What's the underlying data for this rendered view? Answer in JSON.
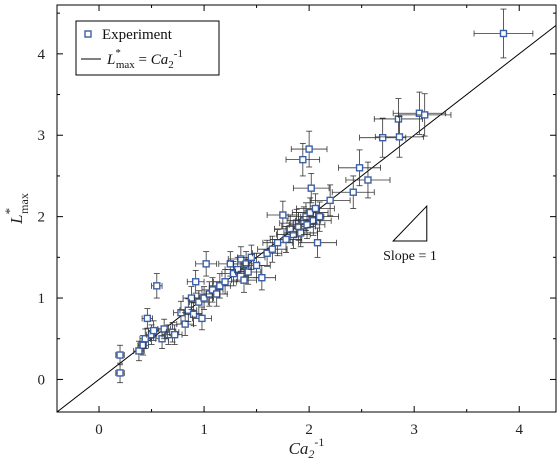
{
  "chart_data": {
    "type": "scatter",
    "title": "",
    "xlabel": {
      "base": "Ca",
      "sub": "2",
      "sup": "-1"
    },
    "ylabel": {
      "base": "L",
      "sup": "*",
      "sub": "max"
    },
    "xlim": [
      -0.4,
      4.35
    ],
    "ylim": [
      -0.4,
      4.6
    ],
    "xticks": [
      0,
      1,
      2,
      3,
      4
    ],
    "yticks": [
      0,
      1,
      2,
      3,
      4
    ],
    "grid": false,
    "legend_position": "top-left",
    "colors": {
      "marker": "#3b5fa8",
      "line": "#000000",
      "errorbar": "#333333"
    },
    "series": [
      {
        "name": "Experiment",
        "kind": "points-with-errorbars",
        "points": [
          [
            0.2,
            0.08,
            0.04,
            0.12
          ],
          [
            0.2,
            0.3,
            0.04,
            0.12
          ],
          [
            0.38,
            0.35,
            0.05,
            0.12
          ],
          [
            0.42,
            0.42,
            0.05,
            0.12
          ],
          [
            0.44,
            0.5,
            0.05,
            0.12
          ],
          [
            0.46,
            0.75,
            0.05,
            0.12
          ],
          [
            0.5,
            0.55,
            0.05,
            0.12
          ],
          [
            0.52,
            0.6,
            0.05,
            0.12
          ],
          [
            0.55,
            1.15,
            0.05,
            0.15
          ],
          [
            0.6,
            0.5,
            0.06,
            0.12
          ],
          [
            0.62,
            0.62,
            0.06,
            0.12
          ],
          [
            0.66,
            0.55,
            0.06,
            0.12
          ],
          [
            0.7,
            0.58,
            0.06,
            0.12
          ],
          [
            0.72,
            0.55,
            0.07,
            0.12
          ],
          [
            0.78,
            0.82,
            0.07,
            0.14
          ],
          [
            0.82,
            0.68,
            0.08,
            0.14
          ],
          [
            0.85,
            0.85,
            0.08,
            0.14
          ],
          [
            0.88,
            1.0,
            0.08,
            0.14
          ],
          [
            0.9,
            0.8,
            0.08,
            0.14
          ],
          [
            0.92,
            1.2,
            0.08,
            0.14
          ],
          [
            0.95,
            0.95,
            0.09,
            0.14
          ],
          [
            0.98,
            0.75,
            0.09,
            0.14
          ],
          [
            1.0,
            1.0,
            0.09,
            0.14
          ],
          [
            1.02,
            1.42,
            0.1,
            0.15
          ],
          [
            1.05,
            1.05,
            0.1,
            0.15
          ],
          [
            1.08,
            1.1,
            0.1,
            0.15
          ],
          [
            1.12,
            1.05,
            0.1,
            0.15
          ],
          [
            1.15,
            1.15,
            0.1,
            0.15
          ],
          [
            1.2,
            1.2,
            0.11,
            0.15
          ],
          [
            1.25,
            1.42,
            0.11,
            0.15
          ],
          [
            1.28,
            1.3,
            0.11,
            0.15
          ],
          [
            1.32,
            1.35,
            0.12,
            0.15
          ],
          [
            1.35,
            1.48,
            0.12,
            0.15
          ],
          [
            1.38,
            1.22,
            0.12,
            0.15
          ],
          [
            1.4,
            1.42,
            0.12,
            0.15
          ],
          [
            1.42,
            1.32,
            0.12,
            0.15
          ],
          [
            1.45,
            1.5,
            0.13,
            0.15
          ],
          [
            1.5,
            1.4,
            0.13,
            0.15
          ],
          [
            1.55,
            1.25,
            0.13,
            0.15
          ],
          [
            1.6,
            1.55,
            0.14,
            0.16
          ],
          [
            1.65,
            1.6,
            0.14,
            0.16
          ],
          [
            1.7,
            1.68,
            0.14,
            0.16
          ],
          [
            1.75,
            2.02,
            0.15,
            0.17
          ],
          [
            1.78,
            1.72,
            0.15,
            0.16
          ],
          [
            1.82,
            1.85,
            0.15,
            0.17
          ],
          [
            1.85,
            1.78,
            0.16,
            0.17
          ],
          [
            1.88,
            1.92,
            0.16,
            0.17
          ],
          [
            1.9,
            1.88,
            0.16,
            0.17
          ],
          [
            1.92,
            1.8,
            0.16,
            0.17
          ],
          [
            1.94,
            2.7,
            0.16,
            0.2
          ],
          [
            1.95,
            1.95,
            0.16,
            0.17
          ],
          [
            1.97,
            2.0,
            0.17,
            0.17
          ],
          [
            1.98,
            1.9,
            0.17,
            0.17
          ],
          [
            2.0,
            2.83,
            0.17,
            0.22
          ],
          [
            2.01,
            2.05,
            0.17,
            0.18
          ],
          [
            2.02,
            2.35,
            0.17,
            0.18
          ],
          [
            2.04,
            1.95,
            0.17,
            0.18
          ],
          [
            2.06,
            2.1,
            0.18,
            0.18
          ],
          [
            2.08,
            1.68,
            0.18,
            0.18
          ],
          [
            2.1,
            2.0,
            0.18,
            0.18
          ],
          [
            2.2,
            2.2,
            0.19,
            0.19
          ],
          [
            2.42,
            2.3,
            0.2,
            0.2
          ],
          [
            2.48,
            2.6,
            0.2,
            0.22
          ],
          [
            2.56,
            2.45,
            0.21,
            0.22
          ],
          [
            2.7,
            2.97,
            0.22,
            0.24
          ],
          [
            2.85,
            3.2,
            0.23,
            0.25
          ],
          [
            2.86,
            2.98,
            0.23,
            0.25
          ],
          [
            3.05,
            3.27,
            0.25,
            0.26
          ],
          [
            3.1,
            3.25,
            0.25,
            0.26
          ],
          [
            3.85,
            4.25,
            0.28,
            0.3
          ]
        ]
      },
      {
        "name": "L*max = Ca2-1",
        "kind": "line",
        "x": [
          -0.4,
          4.35
        ],
        "y": [
          -0.4,
          4.35
        ]
      }
    ],
    "legend": {
      "entries": [
        {
          "symbol": "square",
          "label": "Experiment"
        },
        {
          "symbol": "line",
          "label_parts": {
            "base": "L",
            "sup": "*",
            "sub": "max",
            "eq": " = ",
            "rhs": "Ca",
            "rhs_sub": "2",
            "rhs_sup": "-1"
          }
        }
      ]
    },
    "annotations": [
      {
        "type": "slope-triangle",
        "label": "Slope = 1",
        "x0": 2.8,
        "y0": 1.7,
        "x1": 3.12,
        "y1": 2.13
      }
    ]
  }
}
